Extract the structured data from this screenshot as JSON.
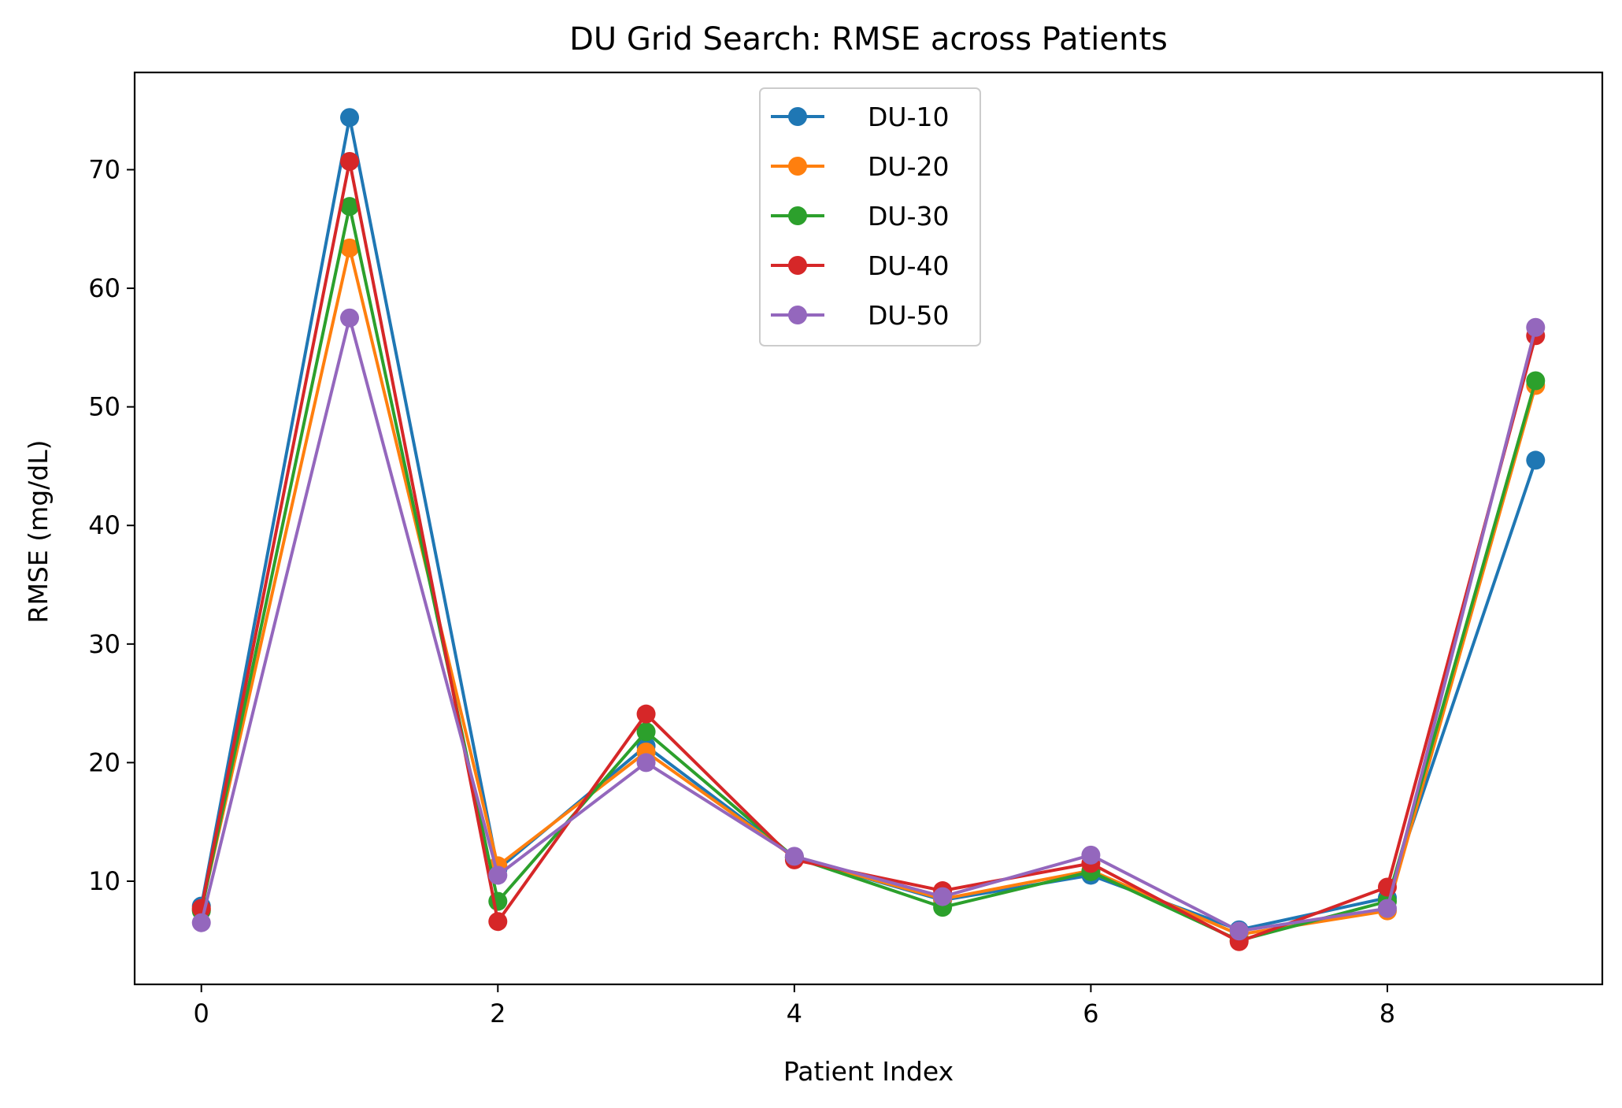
{
  "chart_data": {
    "type": "line",
    "title": "DU Grid Search: RMSE across Patients",
    "xlabel": "Patient Index",
    "ylabel": "RMSE (mg/dL)",
    "xlim": [
      -0.45,
      9.45
    ],
    "ylim": [
      1.3,
      78.2
    ],
    "xticks": [
      0,
      2,
      4,
      6,
      8
    ],
    "yticks": [
      10,
      20,
      30,
      40,
      50,
      60,
      70
    ],
    "grid": false,
    "legend_position": "top-center",
    "x": [
      0,
      1,
      2,
      3,
      4,
      5,
      6,
      7,
      8,
      9
    ],
    "series": [
      {
        "name": "DU-10",
        "color": "#1f77b4",
        "values": [
          7.9,
          74.4,
          11.0,
          21.4,
          12.0,
          8.4,
          10.5,
          5.9,
          8.6,
          45.5
        ]
      },
      {
        "name": "DU-20",
        "color": "#ff7f0e",
        "values": [
          7.6,
          63.4,
          11.3,
          20.9,
          12.0,
          8.5,
          10.9,
          5.5,
          7.5,
          51.8
        ]
      },
      {
        "name": "DU-30",
        "color": "#2ca02c",
        "values": [
          7.5,
          66.9,
          8.3,
          22.6,
          12.0,
          7.8,
          10.8,
          5.0,
          8.3,
          52.2
        ]
      },
      {
        "name": "DU-40",
        "color": "#d62728",
        "values": [
          7.7,
          70.7,
          6.6,
          24.1,
          11.8,
          9.2,
          11.5,
          4.9,
          9.5,
          56.0
        ]
      },
      {
        "name": "DU-50",
        "color": "#9467bd",
        "values": [
          6.5,
          57.5,
          10.5,
          20.0,
          12.1,
          8.7,
          12.2,
          5.8,
          7.7,
          56.7
        ]
      }
    ]
  }
}
